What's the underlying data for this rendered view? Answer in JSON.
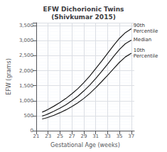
{
  "chart_data": {
    "type": "line",
    "title": "EFW Dichorionic Twins\n(Shivkumar 2015)",
    "xlabel": "Gestational Age (weeks)",
    "ylabel": "EFW (grams)",
    "x": [
      22,
      22.5,
      23,
      24,
      25,
      26,
      27,
      28,
      29,
      30,
      31,
      32,
      33,
      34,
      35,
      36,
      37
    ],
    "series": [
      {
        "name": "90th\nPercentile",
        "color": "#1a1a1a",
        "values": [
          620,
          660,
          710,
          820,
          940,
          1075,
          1230,
          1400,
          1600,
          1820,
          2070,
          2320,
          2580,
          2840,
          3080,
          3270,
          3400
        ]
      },
      {
        "name": "Median",
        "color": "#1a1a1a",
        "values": [
          490,
          520,
          560,
          650,
          750,
          865,
          1000,
          1150,
          1325,
          1520,
          1740,
          1975,
          2220,
          2470,
          2710,
          2900,
          3020
        ]
      },
      {
        "name": "10th\nPercentile",
        "color": "#1a1a1a",
        "values": [
          390,
          415,
          445,
          515,
          600,
          695,
          805,
          930,
          1075,
          1240,
          1430,
          1635,
          1845,
          2065,
          2280,
          2460,
          2580
        ]
      }
    ],
    "xlim": [
      21,
      37.5
    ],
    "ylim": [
      0,
      3600
    ],
    "xticks": [
      21,
      23,
      25,
      27,
      29,
      31,
      33,
      35,
      37
    ],
    "yticks": [
      0,
      500,
      1000,
      1500,
      2000,
      2500,
      3000,
      3500
    ],
    "grid": true
  }
}
